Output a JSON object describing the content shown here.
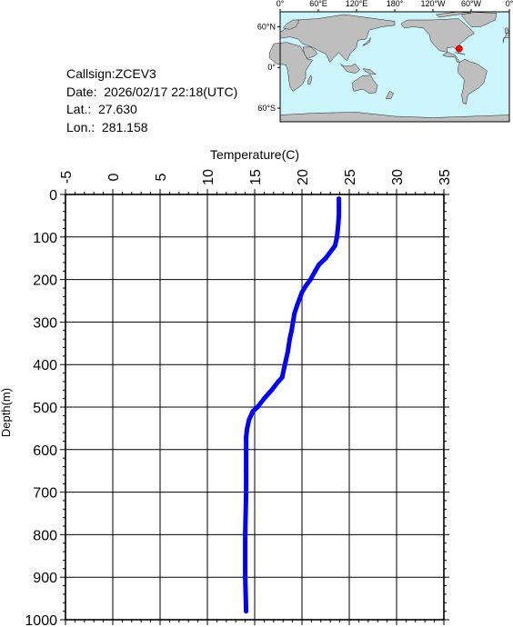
{
  "info": {
    "callsign": "Callsign:ZCEV3",
    "date": "Date:  2026/02/17 22:18(UTC)",
    "lat": "Lat.:  27.630",
    "lon": "Lon.:  281.158"
  },
  "map": {
    "lon_ticks": [
      "0°",
      "60°E",
      "120°E",
      "180°",
      "120°W",
      "60°W",
      "0°"
    ],
    "lat_ticks": [
      "60°N",
      "0°",
      "60°S"
    ],
    "marker_lon": 281.158,
    "marker_lat": 27.63,
    "ocean_color": "#ccf5fb",
    "land_color": "#bebebe",
    "marker_color": "#ff0000"
  },
  "chart_data": {
    "type": "line",
    "xlabel": "Temperature(C)",
    "ylabel": "Depth(m)",
    "xlim": [
      -5,
      35
    ],
    "ylim": [
      0,
      1000
    ],
    "x_ticks": [
      "-5",
      "0",
      "5",
      "10",
      "15",
      "20",
      "25",
      "30",
      "35"
    ],
    "y_ticks": [
      "0",
      "100",
      "200",
      "300",
      "400",
      "500",
      "600",
      "700",
      "800",
      "900",
      "1000"
    ],
    "y_inverted": true,
    "grid": true,
    "line_color": "#0000ff",
    "series": [
      {
        "temperature": [
          23.9,
          23.9,
          23.8,
          23.7,
          23.5,
          22.5,
          21.8,
          21.4,
          20.9,
          20.4,
          20.0,
          19.5,
          19.2,
          18.9,
          18.7,
          18.5,
          18.3,
          18.1,
          17.9,
          17.5,
          16.8,
          16.0,
          15.3,
          14.8,
          14.4,
          14.2,
          14.1,
          14.1,
          14.1,
          14.1,
          14.0,
          14.0,
          14.1
        ],
        "depth": [
          10,
          50,
          80,
          100,
          120,
          150,
          165,
          180,
          200,
          215,
          230,
          260,
          280,
          320,
          340,
          370,
          390,
          410,
          430,
          440,
          460,
          480,
          500,
          510,
          530,
          550,
          570,
          600,
          650,
          700,
          800,
          900,
          980
        ]
      }
    ]
  }
}
